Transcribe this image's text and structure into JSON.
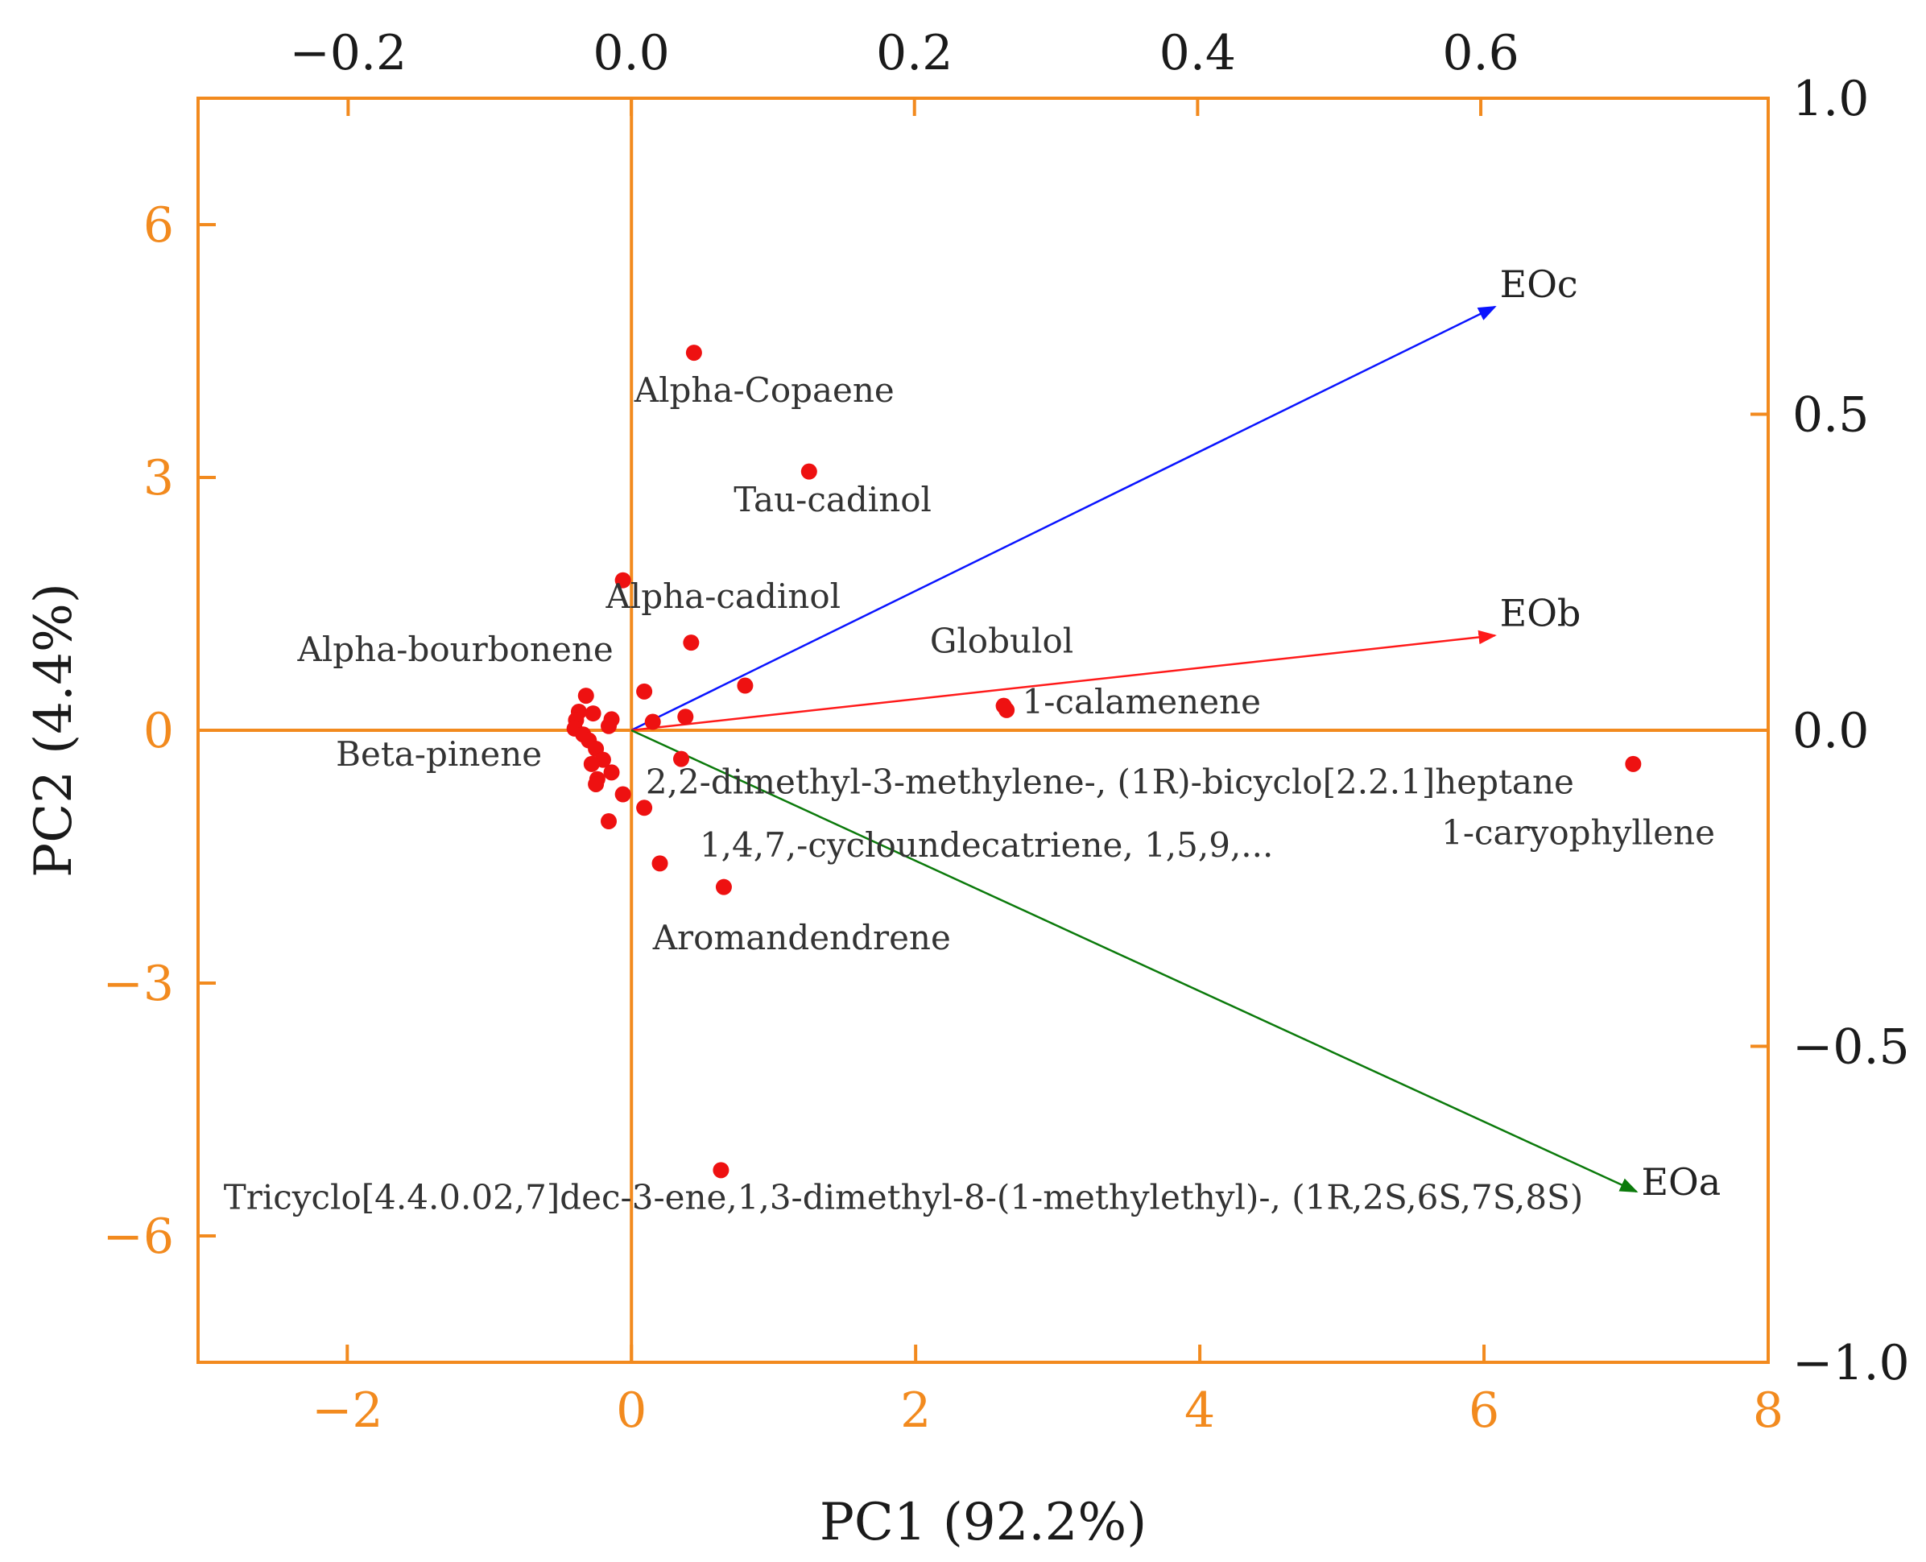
{
  "chart_data": {
    "type": "scatter",
    "subtype": "pca-biplot",
    "title": "",
    "xlabel": "PC1 (92.2%)",
    "ylabel": "PC2 (4.4%)",
    "xlim": [
      -3.05,
      8
    ],
    "ylim": [
      -7.5,
      7.5
    ],
    "xticks": [
      -2,
      0,
      2,
      4,
      6,
      8
    ],
    "yticks": [
      -6,
      -3,
      0,
      3,
      6
    ],
    "xtick_labels": [
      "−2",
      "0",
      "2",
      "4",
      "6",
      "8"
    ],
    "ytick_labels": [
      "−6",
      "−3",
      "0",
      "3",
      "6"
    ],
    "top_xlim": [
      -0.306,
      0.803
    ],
    "top_xticks": [
      -0.2,
      0.0,
      0.2,
      0.4,
      0.6
    ],
    "top_xtick_labels": [
      "−0.2",
      "0.0",
      "0.2",
      "0.4",
      "0.6"
    ],
    "right_ylim": [
      -1.0,
      1.0
    ],
    "right_yticks": [
      -1.0,
      -0.5,
      0.0,
      0.5,
      1.0
    ],
    "right_ytick_labels": [
      "−1.0",
      "−0.5",
      "0.0",
      "0.5",
      "1.0"
    ],
    "grid": false,
    "colors": {
      "axis": "#f28a1e",
      "tick_text_primary": "#f28a1e",
      "tick_text_secondary": "#1a1a1a",
      "points": "#ee1111"
    },
    "points": [
      {
        "x": 0.44,
        "y": 4.48
      },
      {
        "x": 1.25,
        "y": 3.07
      },
      {
        "x": -0.06,
        "y": 1.78
      },
      {
        "x": 0.42,
        "y": 1.04
      },
      {
        "x": 0.8,
        "y": 0.53
      },
      {
        "x": 0.09,
        "y": 0.46
      },
      {
        "x": 0.38,
        "y": 0.16
      },
      {
        "x": 0.15,
        "y": 0.1
      },
      {
        "x": 2.62,
        "y": 0.29
      },
      {
        "x": 2.64,
        "y": 0.24
      },
      {
        "x": 7.05,
        "y": -0.4
      },
      {
        "x": 0.35,
        "y": -0.34
      },
      {
        "x": 0.09,
        "y": -0.92
      },
      {
        "x": 0.2,
        "y": -1.58
      },
      {
        "x": 0.65,
        "y": -1.86
      },
      {
        "x": 0.63,
        "y": -5.22
      },
      {
        "x": -0.32,
        "y": 0.41
      },
      {
        "x": -0.37,
        "y": 0.22
      },
      {
        "x": -0.27,
        "y": 0.2
      },
      {
        "x": -0.39,
        "y": 0.12
      },
      {
        "x": -0.14,
        "y": 0.13
      },
      {
        "x": -0.16,
        "y": 0.05
      },
      {
        "x": -0.4,
        "y": 0.02
      },
      {
        "x": -0.34,
        "y": -0.05
      },
      {
        "x": -0.3,
        "y": -0.12
      },
      {
        "x": -0.25,
        "y": -0.22
      },
      {
        "x": -0.2,
        "y": -0.35
      },
      {
        "x": -0.28,
        "y": -0.4
      },
      {
        "x": -0.14,
        "y": -0.5
      },
      {
        "x": -0.24,
        "y": -0.58
      },
      {
        "x": -0.25,
        "y": -0.64
      },
      {
        "x": -0.06,
        "y": -0.76
      },
      {
        "x": -0.16,
        "y": -1.08
      }
    ],
    "point_labels": [
      {
        "text": "Alpha-Copaene",
        "x": 0.02,
        "y": 3.9
      },
      {
        "text": "Tau-cadinol",
        "x": 0.72,
        "y": 2.6
      },
      {
        "text": "Alpha-cadinol",
        "x": -0.18,
        "y": 1.45
      },
      {
        "text": "Alpha-bourbonene",
        "x": -2.35,
        "y": 0.82
      },
      {
        "text": "Globulol",
        "x": 2.1,
        "y": 0.92
      },
      {
        "text": "1-calamenene",
        "x": 2.75,
        "y": 0.2
      },
      {
        "text": "Beta-pinene",
        "x": -2.08,
        "y": -0.42
      },
      {
        "text": "2,2-dimethyl-3-methylene-, (1R)-bicyclo[2.2.1]heptane",
        "x": 0.1,
        "y": -0.75
      },
      {
        "text": "1-caryophyllene",
        "x": 5.7,
        "y": -1.35
      },
      {
        "text": "1,4,7,-cycloundecatriene, 1,5,9,...",
        "x": 0.48,
        "y": -1.5
      },
      {
        "text": "Aromandendrene",
        "x": 0.15,
        "y": -2.6
      },
      {
        "text": "Tricyclo[4.4.0.02,7]dec-3-ene,1,3-dimethyl-8-(1-methylethyl)-, (1R,2S,6S,7S,8S)",
        "x": -2.87,
        "y": -5.68
      }
    ],
    "loadings": [
      {
        "name": "EOc",
        "x": 0.61,
        "y": 0.67,
        "color": "#0a14ff"
      },
      {
        "name": "EOb",
        "x": 0.61,
        "y": 0.15,
        "color": "#ff1a1a"
      },
      {
        "name": "EOa",
        "x": 0.71,
        "y": -0.73,
        "color": "#0b7a0b"
      }
    ]
  }
}
